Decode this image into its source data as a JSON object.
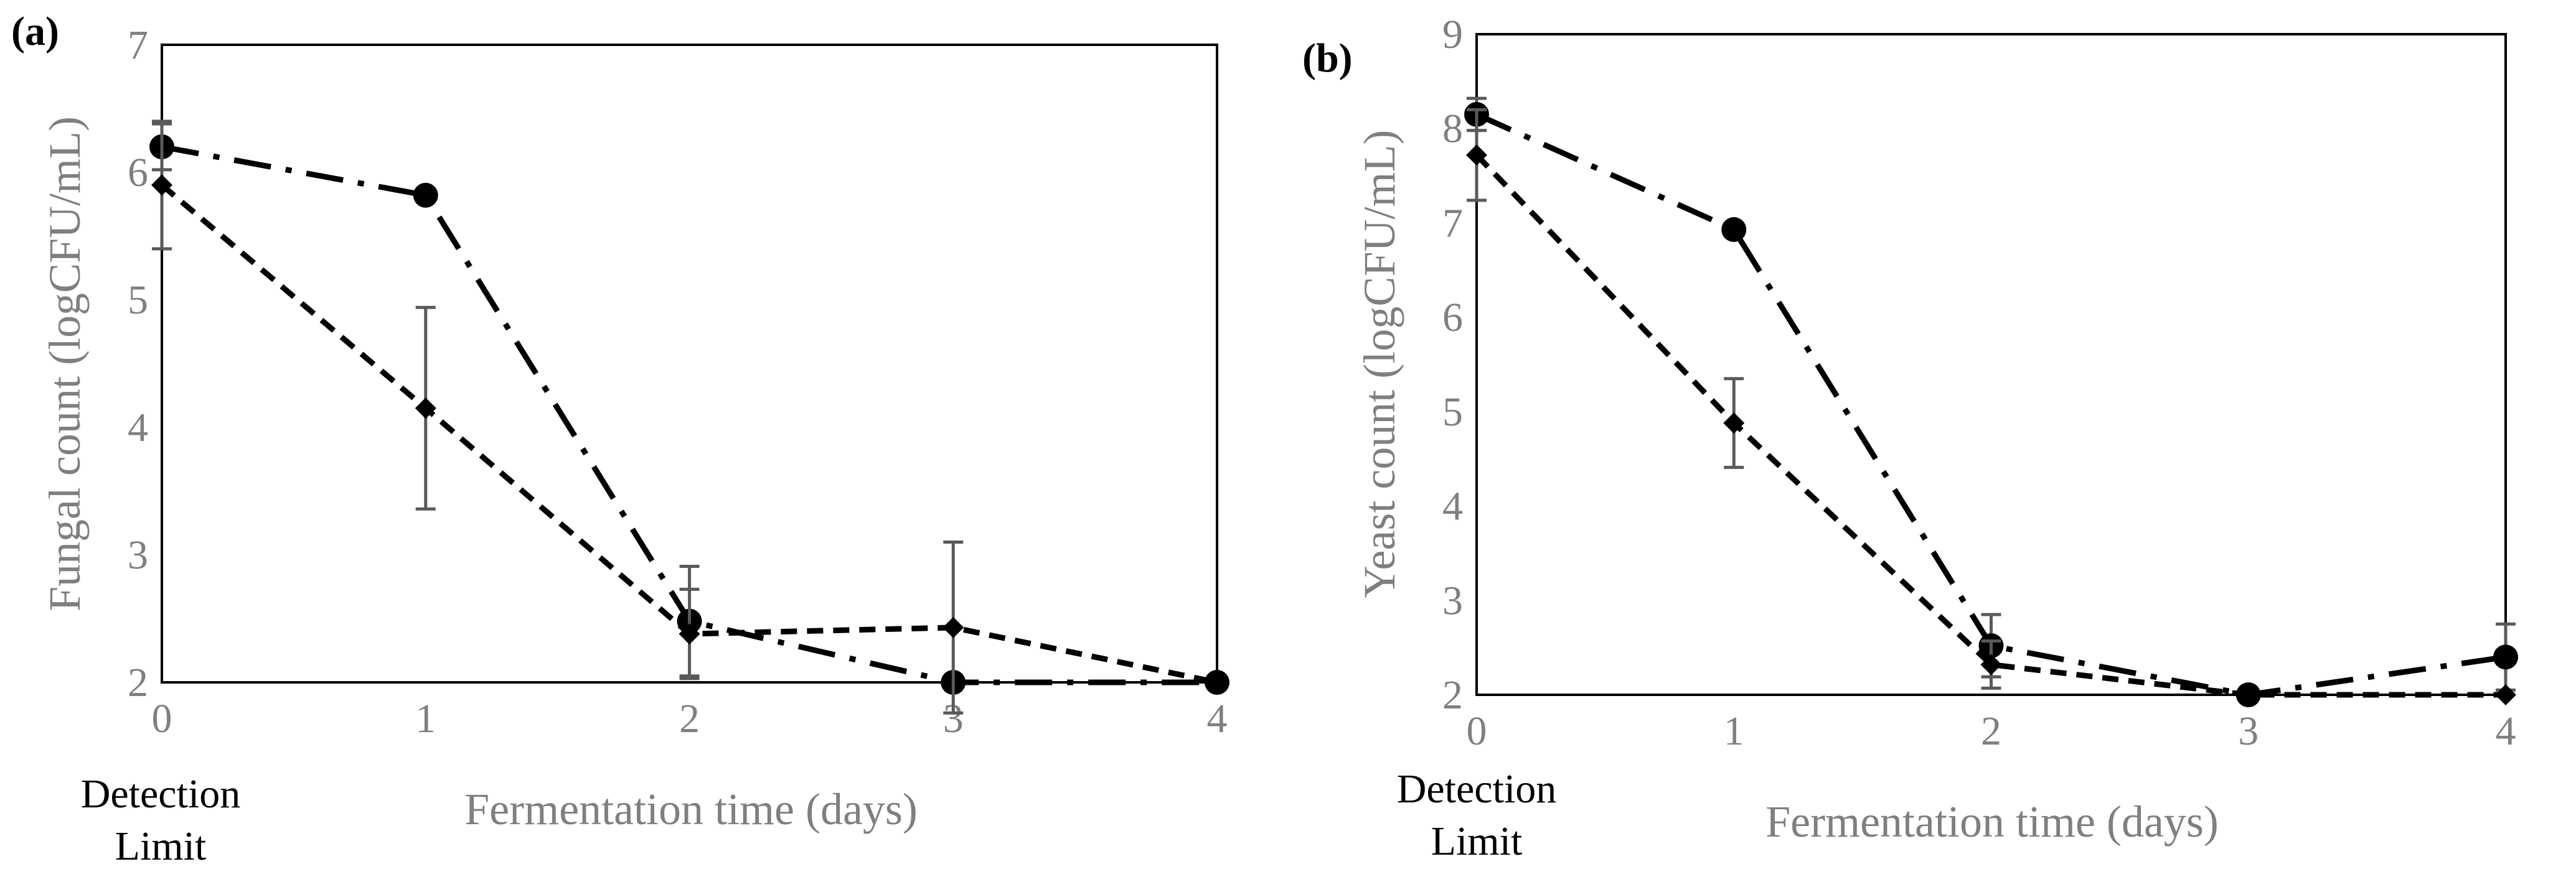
{
  "chart_data": [
    {
      "panel_label": "(a)",
      "type": "line",
      "ylabel": "Fungal count (logCFU/mL)",
      "xlabel": "Fermentation time (days)",
      "x_ticks": [
        "0",
        "1",
        "2",
        "3",
        "4"
      ],
      "y_ticks": [
        "2",
        "3",
        "4",
        "5",
        "6",
        "7"
      ],
      "xlim": [
        0,
        4
      ],
      "ylim": [
        2,
        7
      ],
      "annotation": [
        "Detection",
        "Limit"
      ],
      "series": [
        {
          "name": "circle dash-dot",
          "marker": "circle",
          "dash": "long-dash-dot",
          "x": [
            0,
            1,
            2,
            3,
            4
          ],
          "y": [
            6.2,
            5.82,
            2.48,
            2.0,
            2.0
          ],
          "err": [
            0.18,
            0.0,
            0.43,
            0.0,
            0.0
          ]
        },
        {
          "name": "diamond dashed",
          "marker": "diamond",
          "dash": "dashed",
          "x": [
            0,
            1,
            2,
            3,
            4
          ],
          "y": [
            5.9,
            4.15,
            2.38,
            2.43,
            2.0
          ],
          "err": [
            0.5,
            0.79,
            0.35,
            0.67,
            0.0
          ]
        }
      ]
    },
    {
      "panel_label": "(b)",
      "type": "line",
      "ylabel": "Yeast count (logCFU/mL)",
      "xlabel": "Fermentation time (days)",
      "x_ticks": [
        "0",
        "1",
        "2",
        "3",
        "4"
      ],
      "y_ticks": [
        "2",
        "3",
        "4",
        "5",
        "6",
        "7",
        "8",
        "9"
      ],
      "xlim": [
        0,
        4
      ],
      "ylim": [
        2,
        9
      ],
      "annotation": [
        "Detection",
        "Limit"
      ],
      "series": [
        {
          "name": "circle dash-dot",
          "marker": "circle",
          "dash": "long-dash-dot",
          "x": [
            0,
            1,
            2,
            3,
            4
          ],
          "y": [
            8.15,
            6.93,
            2.52,
            2.0,
            2.4
          ],
          "err": [
            0.17,
            0.0,
            0.33,
            0.0,
            0.35
          ]
        },
        {
          "name": "diamond dashed",
          "marker": "diamond",
          "dash": "dashed",
          "x": [
            0,
            1,
            2,
            3,
            4
          ],
          "y": [
            7.72,
            4.88,
            2.32,
            2.0,
            2.0
          ],
          "err": [
            0.48,
            0.47,
            0.25,
            0.0,
            0.0
          ]
        }
      ]
    }
  ]
}
